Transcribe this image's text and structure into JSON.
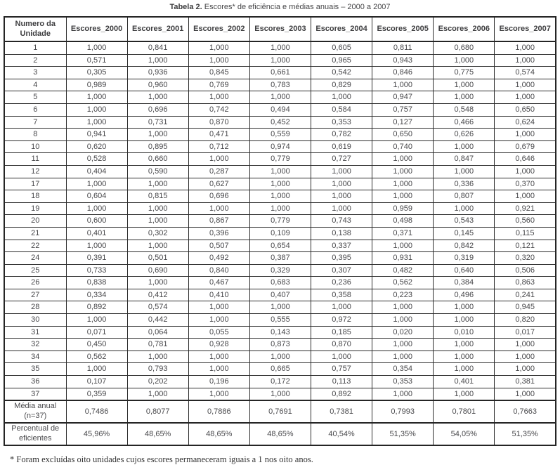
{
  "title": {
    "bold": "Tabela 2.",
    "rest": " Escores* de eficiência e médias anuais – 2000 a 2007"
  },
  "table": {
    "columns": [
      "Numero da Unidade",
      "Escores_2000",
      "Escores_2001",
      "Escores_2002",
      "Escores_2003",
      "Escores_2004",
      "Escores_2005",
      "Escores_2006",
      "Escores_2007"
    ],
    "rows": [
      [
        "1",
        "1,000",
        "0,841",
        "1,000",
        "1,000",
        "0,605",
        "0,811",
        "0,680",
        "1,000"
      ],
      [
        "2",
        "0,571",
        "1,000",
        "1,000",
        "1,000",
        "0,965",
        "0,943",
        "1,000",
        "1,000"
      ],
      [
        "3",
        "0,305",
        "0,936",
        "0,845",
        "0,661",
        "0,542",
        "0,846",
        "0,775",
        "0,574"
      ],
      [
        "4",
        "0,989",
        "0,960",
        "0,769",
        "0,783",
        "0,829",
        "1,000",
        "1,000",
        "1,000"
      ],
      [
        "5",
        "1,000",
        "1,000",
        "1,000",
        "1,000",
        "1,000",
        "0,947",
        "1,000",
        "1,000"
      ],
      [
        "6",
        "1,000",
        "0,696",
        "0,742",
        "0,494",
        "0,584",
        "0,757",
        "0,548",
        "0,650"
      ],
      [
        "7",
        "1,000",
        "0,731",
        "0,870",
        "0,452",
        "0,353",
        "0,127",
        "0,466",
        "0,624"
      ],
      [
        "8",
        "0,941",
        "1,000",
        "0,471",
        "0,559",
        "0,782",
        "0,650",
        "0,626",
        "1,000"
      ],
      [
        "10",
        "0,620",
        "0,895",
        "0,712",
        "0,974",
        "0,619",
        "0,740",
        "1,000",
        "0,679"
      ],
      [
        "11",
        "0,528",
        "0,660",
        "1,000",
        "0,779",
        "0,727",
        "1,000",
        "0,847",
        "0,646"
      ],
      [
        "12",
        "0,404",
        "0,590",
        "0,287",
        "1,000",
        "1,000",
        "1,000",
        "1,000",
        "1,000"
      ],
      [
        "17",
        "1,000",
        "1,000",
        "0,627",
        "1,000",
        "1,000",
        "1,000",
        "0,336",
        "0,370"
      ],
      [
        "18",
        "0,604",
        "0,815",
        "0,696",
        "1,000",
        "1,000",
        "1,000",
        "0,807",
        "1,000"
      ],
      [
        "19",
        "1,000",
        "1,000",
        "1,000",
        "1,000",
        "1,000",
        "0,959",
        "1,000",
        "0,921"
      ],
      [
        "20",
        "0,600",
        "1,000",
        "0,867",
        "0,779",
        "0,743",
        "0,498",
        "0,543",
        "0,560"
      ],
      [
        "21",
        "0,401",
        "0,302",
        "0,396",
        "0,109",
        "0,138",
        "0,371",
        "0,145",
        "0,115"
      ],
      [
        "22",
        "1,000",
        "1,000",
        "0,507",
        "0,654",
        "0,337",
        "1,000",
        "0,842",
        "0,121"
      ],
      [
        "24",
        "0,391",
        "0,501",
        "0,492",
        "0,387",
        "0,395",
        "0,931",
        "0,319",
        "0,320"
      ],
      [
        "25",
        "0,733",
        "0,690",
        "0,840",
        "0,329",
        "0,307",
        "0,482",
        "0,640",
        "0,506"
      ],
      [
        "26",
        "0,838",
        "1,000",
        "0,467",
        "0,683",
        "0,236",
        "0,562",
        "0,384",
        "0,863"
      ],
      [
        "27",
        "0,334",
        "0,412",
        "0,410",
        "0,407",
        "0,358",
        "0,223",
        "0,496",
        "0,241"
      ],
      [
        "28",
        "0,892",
        "0,574",
        "1,000",
        "1,000",
        "1,000",
        "1,000",
        "1,000",
        "0,945"
      ],
      [
        "30",
        "1,000",
        "0,442",
        "1,000",
        "0,555",
        "0,972",
        "1,000",
        "1,000",
        "0,820"
      ],
      [
        "31",
        "0,071",
        "0,064",
        "0,055",
        "0,143",
        "0,185",
        "0,020",
        "0,010",
        "0,017"
      ],
      [
        "32",
        "0,450",
        "0,781",
        "0,928",
        "0,873",
        "0,870",
        "1,000",
        "1,000",
        "1,000"
      ],
      [
        "34",
        "0,562",
        "1,000",
        "1,000",
        "1,000",
        "1,000",
        "1,000",
        "1,000",
        "1,000"
      ],
      [
        "35",
        "1,000",
        "0,793",
        "1,000",
        "0,665",
        "0,757",
        "0,354",
        "1,000",
        "1,000"
      ],
      [
        "36",
        "0,107",
        "0,202",
        "0,196",
        "0,172",
        "0,113",
        "0,353",
        "0,401",
        "0,381"
      ],
      [
        "37",
        "0,359",
        "1,000",
        "1,000",
        "1,000",
        "0,892",
        "1,000",
        "1,000",
        "1,000"
      ]
    ],
    "summary_rows": [
      {
        "label_lines": [
          "Média anual",
          "(n=37)"
        ],
        "values": [
          "0,7486",
          "0,8077",
          "0,7886",
          "0,7691",
          "0,7381",
          "0,7993",
          "0,7801",
          "0,7663"
        ]
      },
      {
        "label_lines": [
          "Percentual de",
          "eficientes"
        ],
        "values": [
          "45,96%",
          "48,65%",
          "48,65%",
          "48,65%",
          "40,54%",
          "51,35%",
          "54,05%",
          "51,35%"
        ]
      }
    ]
  },
  "footnote": "* Foram excluídas oito unidades cujos escores permaneceram iguais a 1 nos oito anos."
}
